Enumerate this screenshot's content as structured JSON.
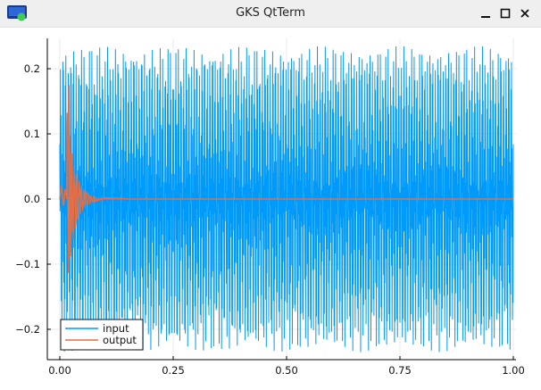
{
  "window": {
    "title": "GKS QtTerm",
    "app_icon": "gks-qtterm-app-icon",
    "controls": [
      "minimize-icon",
      "maximize-icon",
      "close-icon"
    ]
  },
  "colors": {
    "input": "#009AFA",
    "output": "#E26F46",
    "plot_background": "#FFFFFF",
    "window_background": "#F0F0F0"
  },
  "chart_data": {
    "type": "line",
    "title": "",
    "xlabel": "",
    "ylabel": "",
    "xlim": [
      0.0,
      1.0
    ],
    "ylim": [
      -0.24,
      0.24
    ],
    "xticks": [
      0.0,
      0.25,
      0.5,
      0.75,
      1.0
    ],
    "xtick_labels": [
      "0.00",
      "0.25",
      "0.50",
      "0.75",
      "1.00"
    ],
    "yticks": [
      -0.2,
      -0.1,
      0.0,
      0.1,
      0.2
    ],
    "ytick_labels": [
      "−0.2",
      "−0.1",
      "0.0",
      "0.1",
      "0.2"
    ],
    "grid": true,
    "legend_position": "bottom-left",
    "series": [
      {
        "name": "input",
        "color": "#009AFA",
        "description_of_signal": "dense oscillation over the whole range, envelope ≈ ±0.22, peaks reaching ≈ +0.235 and ≈ −0.235",
        "envelope_max": 0.235,
        "envelope_min": -0.235
      },
      {
        "name": "output",
        "color": "#E26F46",
        "transient_points": [
          [
            0.0,
            0.0
          ],
          [
            0.004,
            0.02
          ],
          [
            0.008,
            -0.01
          ],
          [
            0.012,
            0.015
          ],
          [
            0.016,
            0.0
          ],
          [
            0.02,
            0.175
          ],
          [
            0.022,
            -0.09
          ],
          [
            0.025,
            0.07
          ],
          [
            0.028,
            -0.05
          ],
          [
            0.032,
            0.04
          ],
          [
            0.037,
            -0.03
          ],
          [
            0.043,
            0.02
          ],
          [
            0.05,
            -0.012
          ],
          [
            0.06,
            0.008
          ],
          [
            0.075,
            -0.004
          ],
          [
            0.1,
            0.002
          ],
          [
            0.15,
            0.0
          ],
          [
            1.0,
            0.0
          ]
        ]
      }
    ]
  }
}
